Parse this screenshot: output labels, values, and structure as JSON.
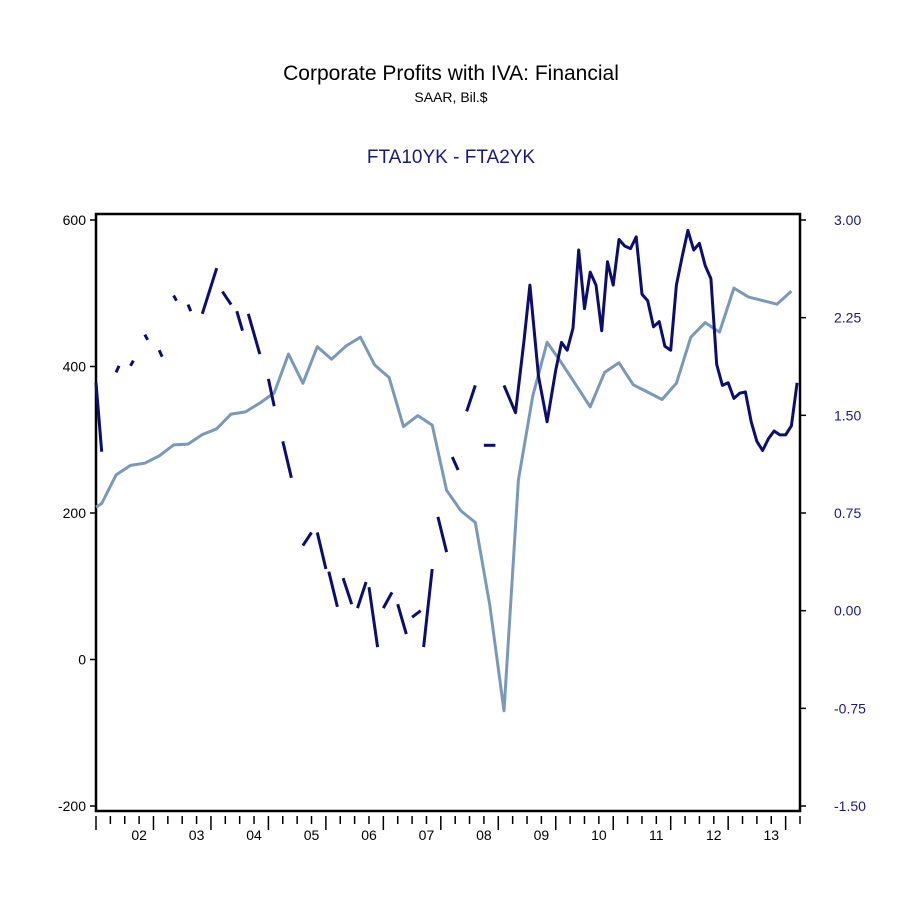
{
  "header": {
    "title": "Corporate Profits with IVA: Financial",
    "subtitle": "SAAR, Bil.$",
    "right_series_label": "FTA10YK - FTA2YK"
  },
  "colors": {
    "profits": "#7b98b8",
    "spread": "#0d0d6e",
    "axis": "#000000",
    "right_axis_text": "#1a1a7a"
  },
  "chart_data": {
    "type": "line",
    "title": "Corporate Profits with IVA: Financial",
    "subtitle": "SAAR, Bil.$",
    "x_range": [
      2001.0,
      2013.25
    ],
    "x_tick_labels": [
      "02",
      "03",
      "04",
      "05",
      "06",
      "07",
      "08",
      "09",
      "10",
      "11",
      "12",
      "13"
    ],
    "left_axis": {
      "ylim": [
        -200,
        600
      ],
      "ticks": [
        600,
        400,
        200,
        0,
        -200
      ]
    },
    "right_axis": {
      "ylim": [
        -1.5,
        3.0
      ],
      "ticks": [
        "3.00",
        "2.25",
        "1.50",
        "0.75",
        "0.00",
        "-0.75",
        "-1.50"
      ]
    },
    "series": [
      {
        "axis": "left",
        "style": "solid",
        "x": [
          2001.0,
          2001.1,
          2001.35,
          2001.6,
          2001.85,
          2002.1,
          2002.35,
          2002.6,
          2002.85,
          2003.1,
          2003.35,
          2003.6,
          2003.85,
          2004.1,
          2004.35,
          2004.6,
          2004.85,
          2005.1,
          2005.35,
          2005.6,
          2005.85,
          2006.1,
          2006.35,
          2006.6,
          2006.85,
          2007.1,
          2007.35,
          2007.6,
          2007.85,
          2008.1,
          2008.35,
          2008.6,
          2008.85,
          2009.1,
          2009.35,
          2009.6,
          2009.85,
          2010.1,
          2010.35,
          2010.6,
          2010.85,
          2011.1,
          2011.35,
          2011.6,
          2011.85,
          2012.1,
          2012.35,
          2012.6,
          2012.85,
          2013.1
        ],
        "values": [
          208,
          213,
          252,
          265,
          268,
          278,
          293,
          294,
          307,
          315,
          335,
          338,
          350,
          364,
          417,
          377,
          427,
          410,
          428,
          440,
          402,
          385,
          318,
          333,
          320,
          231,
          203,
          187,
          75,
          -70,
          245,
          360,
          433,
          405,
          375,
          345,
          392,
          405,
          375,
          365,
          355,
          377,
          440,
          460,
          447,
          507,
          495,
          490,
          485,
          503
        ]
      },
      {
        "axis": "right",
        "style": "segmented",
        "segments": [
          {
            "x": [
              2001.0,
              2001.1
            ],
            "values": [
              1.75,
              1.22
            ]
          },
          {
            "x": [
              2001.35,
              2001.4
            ],
            "values": [
              1.83,
              1.88
            ]
          },
          {
            "x": [
              2001.6,
              2001.65
            ],
            "values": [
              1.88,
              1.92
            ]
          },
          {
            "x": [
              2001.85,
              2001.9
            ],
            "values": [
              2.12,
              2.08
            ]
          },
          {
            "x": [
              2002.1,
              2002.15
            ],
            "values": [
              2.0,
              1.95
            ]
          },
          {
            "x": [
              2002.35,
              2002.4
            ],
            "values": [
              2.42,
              2.38
            ]
          },
          {
            "x": [
              2002.6,
              2002.65
            ],
            "values": [
              2.35,
              2.3
            ]
          },
          {
            "x": [
              2002.85,
              2003.1
            ],
            "values": [
              2.28,
              2.63
            ]
          },
          {
            "x": [
              2003.2,
              2003.35
            ],
            "values": [
              2.45,
              2.35
            ]
          },
          {
            "x": [
              2003.45,
              2003.55
            ],
            "values": [
              2.3,
              2.15
            ]
          },
          {
            "x": [
              2003.65,
              2003.85
            ],
            "values": [
              2.28,
              1.97
            ]
          },
          {
            "x": [
              2004.0,
              2004.1
            ],
            "values": [
              1.78,
              1.57
            ]
          },
          {
            "x": [
              2004.25,
              2004.4
            ],
            "values": [
              1.3,
              1.02
            ]
          },
          {
            "x": [
              2004.6,
              2004.75
            ],
            "values": [
              0.5,
              0.6
            ]
          },
          {
            "x": [
              2004.85,
              2005.0
            ],
            "values": [
              0.6,
              0.32
            ]
          },
          {
            "x": [
              2005.05,
              2005.2
            ],
            "values": [
              0.3,
              0.03
            ]
          },
          {
            "x": [
              2005.3,
              2005.45
            ],
            "values": [
              0.25,
              0.05
            ]
          },
          {
            "x": [
              2005.55,
              2005.7
            ],
            "values": [
              0.02,
              0.22
            ]
          },
          {
            "x": [
              2005.75,
              2005.9
            ],
            "values": [
              0.18,
              -0.28
            ]
          },
          {
            "x": [
              2006.0,
              2006.15
            ],
            "values": [
              0.02,
              0.14
            ]
          },
          {
            "x": [
              2006.25,
              2006.4
            ],
            "values": [
              0.05,
              -0.18
            ]
          },
          {
            "x": [
              2006.5,
              2006.65
            ],
            "values": [
              -0.05,
              0.0
            ]
          },
          {
            "x": [
              2006.7,
              2006.85
            ],
            "values": [
              -0.28,
              0.32
            ]
          },
          {
            "x": [
              2006.95,
              2007.1
            ],
            "values": [
              0.72,
              0.45
            ]
          },
          {
            "x": [
              2007.2,
              2007.3
            ],
            "values": [
              1.18,
              1.08
            ]
          },
          {
            "x": [
              2007.45,
              2007.6
            ],
            "values": [
              1.53,
              1.73
            ]
          },
          {
            "x": [
              2007.75,
              2007.95
            ],
            "values": [
              1.27,
              1.27
            ]
          },
          {
            "x": [
              2008.1,
              2008.3,
              2008.45,
              2008.55,
              2008.7,
              2008.85,
              2009.0,
              2009.1,
              2009.2,
              2009.3,
              2009.4,
              2009.5,
              2009.6,
              2009.7,
              2009.8,
              2009.9,
              2010.0,
              2010.1,
              2010.2,
              2010.3,
              2010.4,
              2010.5,
              2010.6,
              2010.7,
              2010.8,
              2010.9,
              2011.0,
              2011.1,
              2011.2,
              2011.3,
              2011.4,
              2011.5,
              2011.6,
              2011.7,
              2011.8,
              2011.9,
              2012.0,
              2012.1,
              2012.2,
              2012.3,
              2012.4,
              2012.5,
              2012.6,
              2012.7,
              2012.8,
              2012.9,
              2013.0,
              2013.1,
              2013.2
            ],
            "values": [
              1.73,
              1.52,
              2.08,
              2.5,
              1.8,
              1.45,
              1.85,
              2.06,
              2.0,
              2.17,
              2.77,
              2.32,
              2.6,
              2.5,
              2.15,
              2.68,
              2.5,
              2.85,
              2.8,
              2.78,
              2.87,
              2.43,
              2.38,
              2.18,
              2.22,
              2.03,
              2.0,
              2.5,
              2.72,
              2.92,
              2.77,
              2.82,
              2.65,
              2.55,
              1.89,
              1.73,
              1.75,
              1.63,
              1.67,
              1.68,
              1.45,
              1.3,
              1.23,
              1.32,
              1.38,
              1.35,
              1.35,
              1.42,
              1.75
            ]
          }
        ]
      }
    ]
  }
}
